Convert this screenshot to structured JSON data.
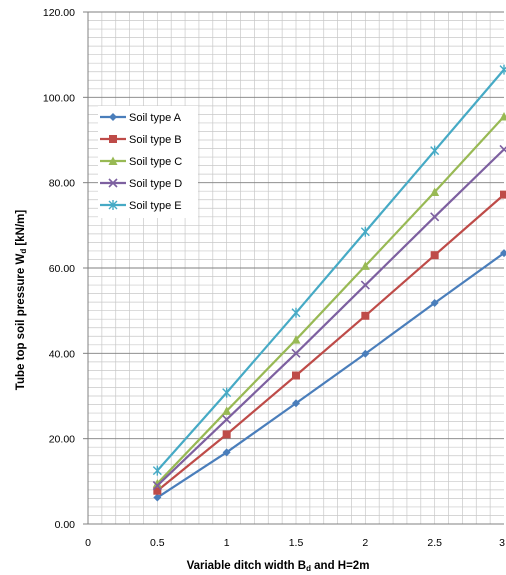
{
  "chart_data": {
    "type": "line",
    "title": "",
    "xlabel": "Variable ditch width B",
    "xlabel_sub": "d",
    "xlabel_suffix": " and H=2m",
    "ylabel": "Tube top soil pressure W",
    "ylabel_sub": "d",
    "ylabel_suffix": " [kN/m]",
    "x": [
      0.5,
      1,
      1.5,
      2,
      2.5,
      3
    ],
    "xlim": [
      0,
      3
    ],
    "ylim": [
      0,
      120
    ],
    "x_ticks": [
      "0",
      "0.5",
      "1",
      "1.5",
      "2",
      "2.5",
      "3"
    ],
    "y_ticks": [
      "0.00",
      "20.00",
      "40.00",
      "60.00",
      "80.00",
      "100.00",
      "120.00"
    ],
    "grid": true,
    "legend_position": "top-left",
    "series": [
      {
        "name": "Soil type A",
        "color": "#4a7ebb",
        "marker": "diamond",
        "values": [
          6.2,
          16.8,
          28.3,
          39.9,
          51.8,
          63.5
        ]
      },
      {
        "name": "Soil type B",
        "color": "#be4b48",
        "marker": "square",
        "values": [
          7.8,
          21.0,
          34.8,
          48.8,
          63.0,
          77.2
        ]
      },
      {
        "name": "Soil type C",
        "color": "#98b954",
        "marker": "triangle",
        "values": [
          9.5,
          26.5,
          43.2,
          60.5,
          77.8,
          95.5
        ]
      },
      {
        "name": "Soil type D",
        "color": "#7d60a0",
        "marker": "x",
        "values": [
          9.0,
          24.5,
          40.0,
          56.0,
          72.0,
          87.8
        ]
      },
      {
        "name": "Soil type E",
        "color": "#46aac5",
        "marker": "star",
        "values": [
          12.5,
          30.8,
          49.5,
          68.5,
          87.5,
          106.5
        ]
      }
    ]
  }
}
